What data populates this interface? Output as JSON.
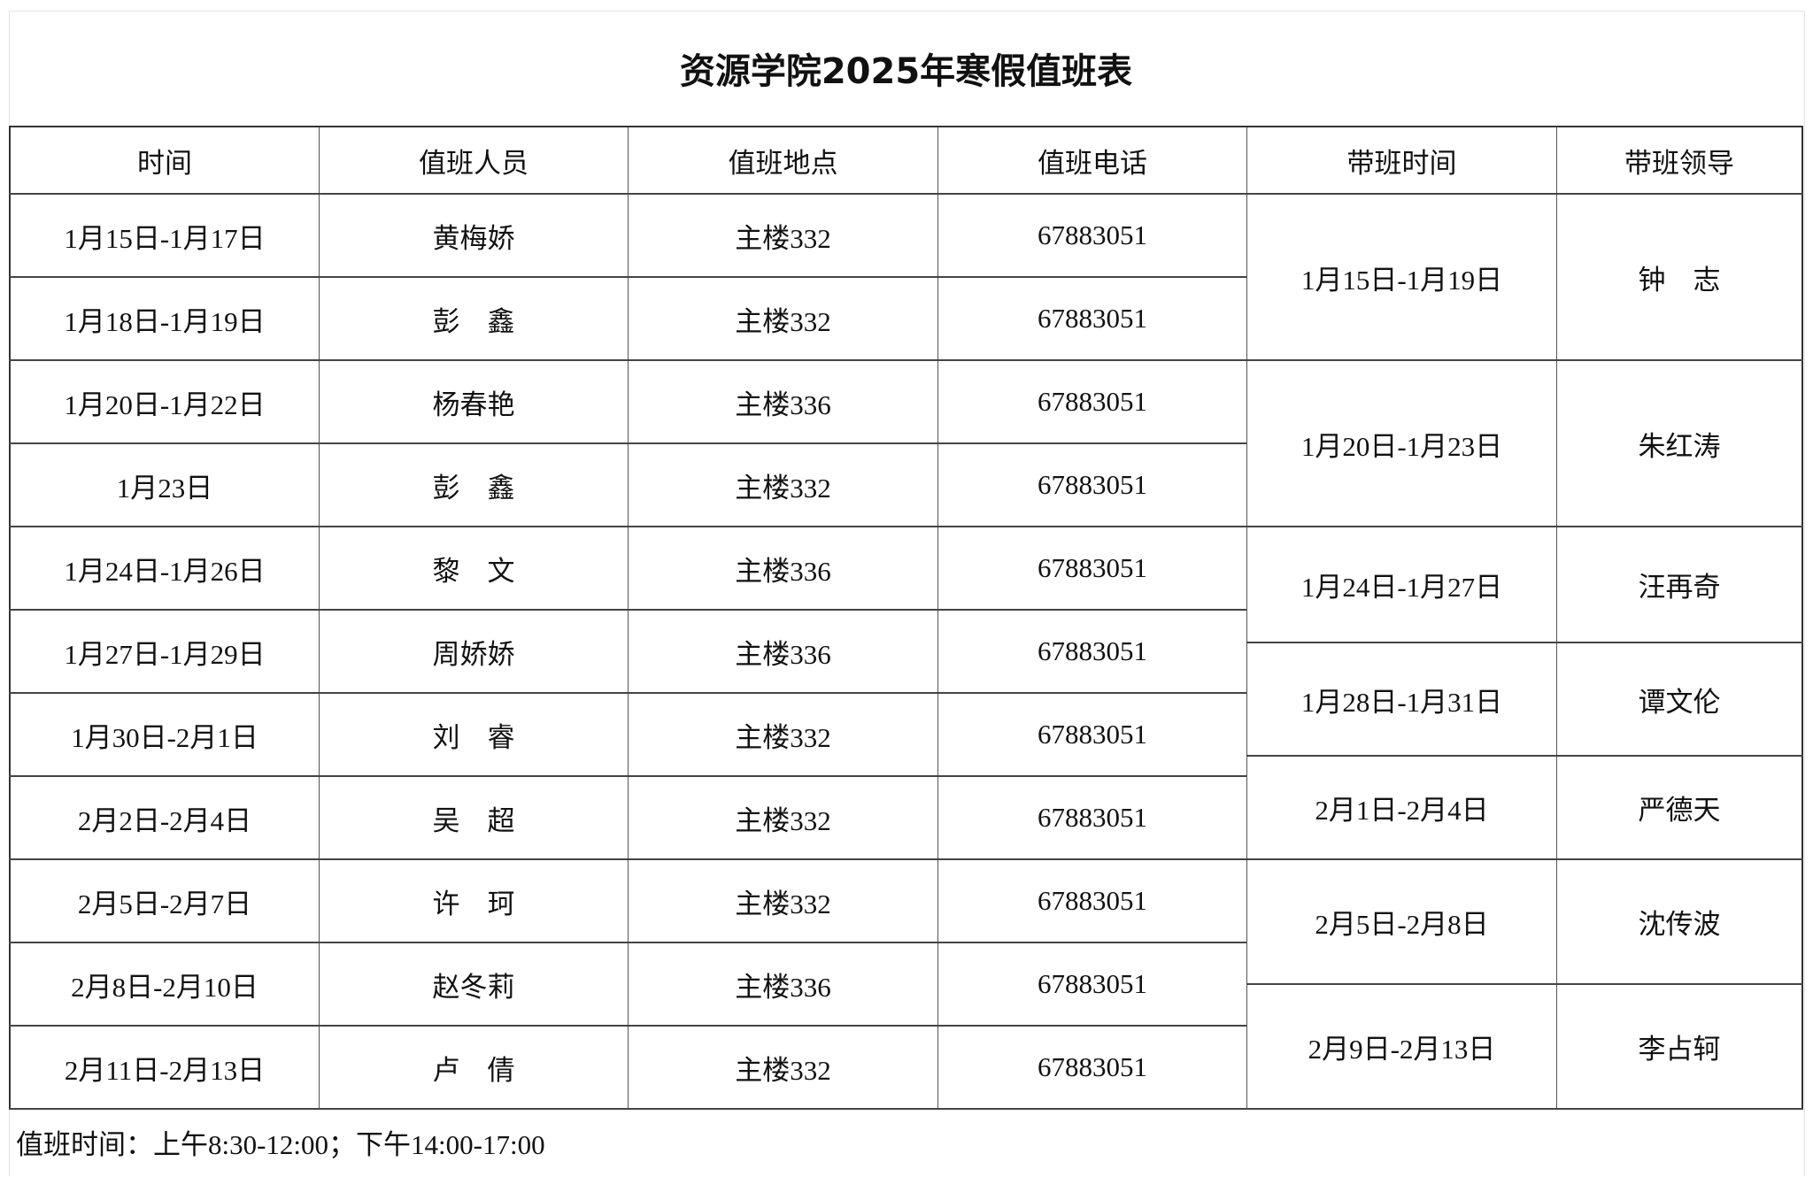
{
  "title": "资源学院2025年寒假值班表",
  "headers": [
    "时间",
    "值班人员",
    "值班地点",
    "值班电话",
    "带班时间",
    "带班领导"
  ],
  "duty_rows": [
    {
      "time": "1月15日-1月17日",
      "person": "黄梅娇",
      "place": "主楼332",
      "phone": "67883051"
    },
    {
      "time": "1月18日-1月19日",
      "person": "彭　鑫",
      "place": "主楼332",
      "phone": "67883051"
    },
    {
      "time": "1月20日-1月22日",
      "person": "杨春艳",
      "place": "主楼336",
      "phone": "67883051"
    },
    {
      "time": "1月23日",
      "person": "彭　鑫",
      "place": "主楼332",
      "phone": "67883051"
    },
    {
      "time": "1月24日-1月26日",
      "person": "黎　文",
      "place": "主楼336",
      "phone": "67883051"
    },
    {
      "time": "1月27日-1月29日",
      "person": "周娇娇",
      "place": "主楼336",
      "phone": "67883051"
    },
    {
      "time": "1月30日-2月1日",
      "person": "刘　睿",
      "place": "主楼332",
      "phone": "67883051"
    },
    {
      "time": "2月2日-2月4日",
      "person": "吴　超",
      "place": "主楼332",
      "phone": "67883051"
    },
    {
      "time": "2月5日-2月7日",
      "person": "许　珂",
      "place": "主楼332",
      "phone": "67883051"
    },
    {
      "time": "2月8日-2月10日",
      "person": "赵冬莉",
      "place": "主楼336",
      "phone": "67883051"
    },
    {
      "time": "2月11日-2月13日",
      "person": "卢　倩",
      "place": "主楼332",
      "phone": "67883051"
    }
  ],
  "leader_rows": [
    {
      "time": "1月15日-1月19日",
      "leader": "钟　志"
    },
    {
      "time": "1月20日-1月23日",
      "leader": "朱红涛"
    },
    {
      "time": "1月24日-1月27日",
      "leader": "汪再奇"
    },
    {
      "time": "1月28日-1月31日",
      "leader": "谭文伦"
    },
    {
      "time": "2月1日-2月4日",
      "leader": "严德天"
    },
    {
      "time": "2月5日-2月8日",
      "leader": "沈传波"
    },
    {
      "time": "2月9日-2月13日",
      "leader": "李占轲"
    }
  ],
  "footer": "值班时间：上午8:30-12:00；下午14:00-17:00"
}
